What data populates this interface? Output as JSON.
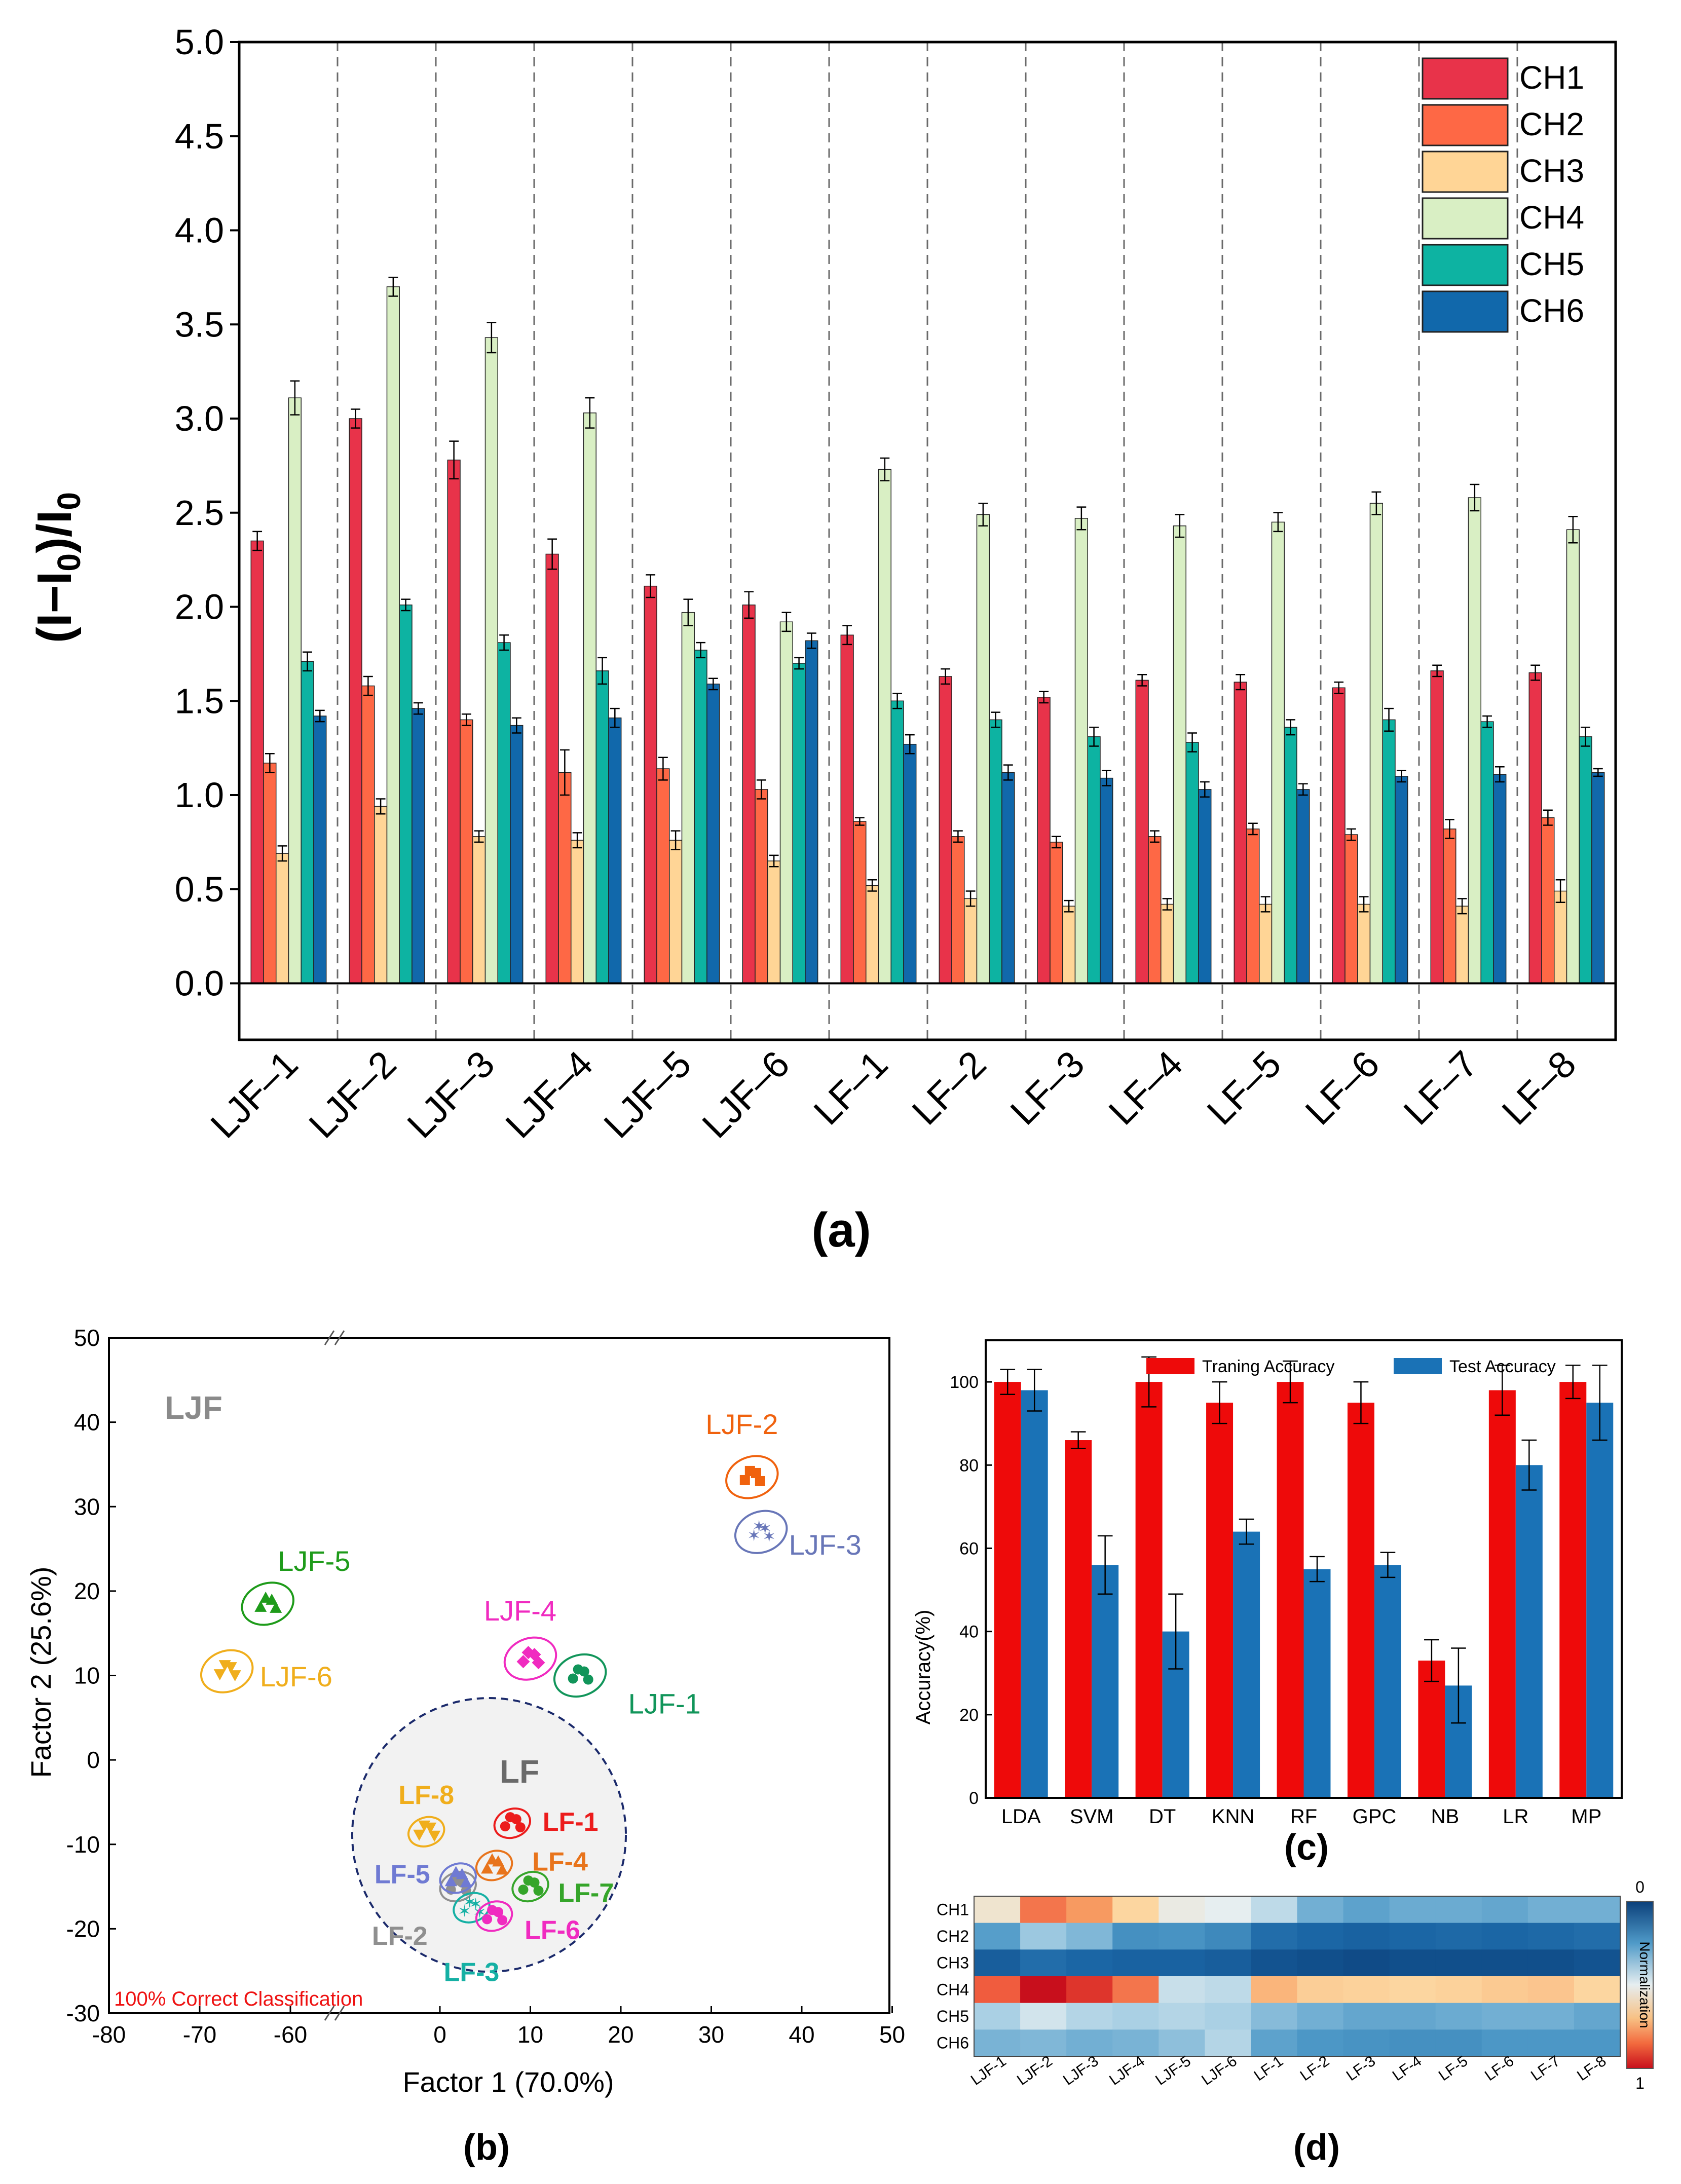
{
  "panel_labels": {
    "a": "(a)",
    "b": "(b)",
    "c": "(c)",
    "d": "(d)"
  },
  "chart_data": [
    {
      "id": "a",
      "type": "bar",
      "title": "",
      "ylabel": "(I−I0)/I0",
      "ylabel_parts": {
        "open": "(I−I",
        "sub1": "0",
        "mid": ")/I",
        "sub2": "0"
      },
      "xlabel": "",
      "ylim": [
        -0.3,
        5.0
      ],
      "yticks": [
        "0.0",
        "0.5",
        "1.0",
        "1.5",
        "2.0",
        "2.5",
        "3.0",
        "3.5",
        "4.0",
        "4.5",
        "5.0"
      ],
      "categories": [
        "LJF–1",
        "LJF–2",
        "LJF–3",
        "LJF–4",
        "LJF–5",
        "LJF–6",
        "LF–1",
        "LF–2",
        "LF–3",
        "LF–4",
        "LF–5",
        "LF–6",
        "LF–7",
        "LF–8"
      ],
      "legend_position": "top-right",
      "series": [
        {
          "name": "CH1",
          "color": "#e8334a",
          "values": [
            2.35,
            3.0,
            2.78,
            2.28,
            2.11,
            2.01,
            1.85,
            1.63,
            1.52,
            1.61,
            1.6,
            1.57,
            1.66,
            1.65
          ],
          "errors": [
            0.05,
            0.05,
            0.1,
            0.08,
            0.06,
            0.07,
            0.05,
            0.04,
            0.03,
            0.03,
            0.04,
            0.03,
            0.03,
            0.04
          ]
        },
        {
          "name": "CH2",
          "color": "#fe6845",
          "values": [
            1.17,
            1.58,
            1.4,
            1.12,
            1.14,
            1.03,
            0.86,
            0.78,
            0.75,
            0.78,
            0.82,
            0.79,
            0.82,
            0.88
          ],
          "errors": [
            0.05,
            0.05,
            0.03,
            0.12,
            0.06,
            0.05,
            0.02,
            0.03,
            0.03,
            0.03,
            0.03,
            0.03,
            0.05,
            0.04
          ]
        },
        {
          "name": "CH3",
          "color": "#ffd596",
          "values": [
            0.69,
            0.94,
            0.78,
            0.76,
            0.76,
            0.65,
            0.52,
            0.45,
            0.41,
            0.42,
            0.42,
            0.42,
            0.41,
            0.49
          ],
          "errors": [
            0.04,
            0.04,
            0.03,
            0.04,
            0.05,
            0.03,
            0.03,
            0.04,
            0.03,
            0.03,
            0.04,
            0.04,
            0.04,
            0.06
          ]
        },
        {
          "name": "CH4",
          "color": "#d9efc4",
          "values": [
            3.11,
            3.7,
            3.43,
            3.03,
            1.97,
            1.92,
            2.73,
            2.49,
            2.47,
            2.43,
            2.45,
            2.55,
            2.58,
            2.41
          ],
          "errors": [
            0.09,
            0.05,
            0.08,
            0.08,
            0.07,
            0.05,
            0.06,
            0.06,
            0.06,
            0.06,
            0.05,
            0.06,
            0.07,
            0.07
          ]
        },
        {
          "name": "CH5",
          "color": "#0db3a2",
          "values": [
            1.71,
            2.01,
            1.81,
            1.66,
            1.77,
            1.7,
            1.5,
            1.4,
            1.31,
            1.28,
            1.36,
            1.4,
            1.39,
            1.31
          ],
          "errors": [
            0.05,
            0.03,
            0.04,
            0.07,
            0.04,
            0.03,
            0.04,
            0.04,
            0.05,
            0.05,
            0.04,
            0.06,
            0.03,
            0.05
          ]
        },
        {
          "name": "CH6",
          "color": "#1168ab",
          "values": [
            1.42,
            1.46,
            1.37,
            1.41,
            1.59,
            1.82,
            1.27,
            1.12,
            1.09,
            1.03,
            1.03,
            1.1,
            1.11,
            1.12
          ],
          "errors": [
            0.03,
            0.03,
            0.04,
            0.05,
            0.03,
            0.04,
            0.05,
            0.04,
            0.04,
            0.04,
            0.03,
            0.03,
            0.04,
            0.02
          ]
        }
      ]
    },
    {
      "id": "b",
      "type": "scatter",
      "xlabel": "Factor 1 (70.0%)",
      "ylabel": "Factor 2 (25.6%)",
      "xticks": [
        "-80",
        "-70",
        "-60",
        "0",
        "10",
        "20",
        "30",
        "40",
        "50"
      ],
      "yticks": [
        "-30",
        "-20",
        "-10",
        "0",
        "10",
        "20",
        "30",
        "40",
        "50"
      ],
      "xlim_left": [
        -80,
        -55
      ],
      "xlim_right": [
        -10,
        50
      ],
      "ylim": [
        -30,
        50
      ],
      "group_labels": {
        "ljf": "LJF",
        "lf": "LF"
      },
      "annotation": "100% Correct Classification",
      "clusters": [
        {
          "label": "LJF-1",
          "x": 15.5,
          "y": 10.0,
          "color": "#11955a",
          "marker": "circle"
        },
        {
          "label": "LJF-2",
          "x": 34.5,
          "y": 33.5,
          "color": "#f0620e",
          "marker": "square"
        },
        {
          "label": "LJF-3",
          "x": 35.5,
          "y": 27.0,
          "color": "#6876b8",
          "marker": "star"
        },
        {
          "label": "LJF-4",
          "x": 10.0,
          "y": 12.0,
          "color": "#f02bc0",
          "marker": "diamond"
        },
        {
          "label": "LJF-5",
          "x": -62.5,
          "y": 18.5,
          "color": "#1e9b1a",
          "marker": "triangle"
        },
        {
          "label": "LJF-6",
          "x": -67.0,
          "y": 10.5,
          "color": "#f0ae1c",
          "marker": "triangle-down"
        },
        {
          "label": "LF-1",
          "x": 8.0,
          "y": -7.5,
          "color": "#ec1c1c",
          "marker": "circle"
        },
        {
          "label": "LF-2",
          "x": 2.0,
          "y": -15.0,
          "color": "#8f8f8f",
          "marker": "circle"
        },
        {
          "label": "LF-3",
          "x": 3.5,
          "y": -17.5,
          "color": "#15b0a4",
          "marker": "star"
        },
        {
          "label": "LF-4",
          "x": 6.0,
          "y": -12.5,
          "color": "#e8741c",
          "marker": "triangle"
        },
        {
          "label": "LF-5",
          "x": 2.0,
          "y": -14.0,
          "color": "#6f7ad3",
          "marker": "triangle"
        },
        {
          "label": "LF-6",
          "x": 6.0,
          "y": -18.5,
          "color": "#f02bc0",
          "marker": "circle"
        },
        {
          "label": "LF-7",
          "x": 10.0,
          "y": -15.0,
          "color": "#35a52a",
          "marker": "circle"
        },
        {
          "label": "LF-8",
          "x": -1.5,
          "y": -8.5,
          "color": "#f0ae1c",
          "marker": "triangle-down"
        }
      ]
    },
    {
      "id": "c",
      "type": "bar",
      "ylabel": "Accuracy(%)",
      "xlabel": "",
      "ylim": [
        0,
        110
      ],
      "yticks": [
        "0",
        "20",
        "40",
        "60",
        "80",
        "100"
      ],
      "categories": [
        "LDA",
        "SVM",
        "DT",
        "KNN",
        "RF",
        "GPC",
        "NB",
        "LR",
        "MP"
      ],
      "legend_position": "top",
      "series": [
        {
          "name": "Traning Accuracy",
          "color": "#ee0a0a",
          "values": [
            100,
            86,
            100,
            95,
            100,
            95,
            33,
            98,
            100
          ],
          "errors": [
            3,
            2,
            6,
            5,
            5,
            5,
            5,
            6,
            4
          ]
        },
        {
          "name": "Test Accuracy",
          "color": "#1a72b6",
          "values": [
            98,
            56,
            40,
            64,
            55,
            56,
            27,
            80,
            95
          ],
          "errors": [
            5,
            7,
            9,
            3,
            3,
            3,
            9,
            6,
            9
          ]
        }
      ]
    },
    {
      "id": "d",
      "type": "heatmap",
      "rows": [
        "CH1",
        "CH2",
        "CH3",
        "CH4",
        "CH5",
        "CH6"
      ],
      "columns": [
        "LJF-1",
        "LJF-2",
        "LJF-3",
        "LJF-4",
        "LJF-5",
        "LJF-6",
        "LF-1",
        "LF-2",
        "LF-3",
        "LF-4",
        "LF-5",
        "LF-6",
        "LF-7",
        "LF-8"
      ],
      "colorbar_label": "Normalization",
      "colorbar_ticks": [
        "0",
        "1"
      ],
      "scale_note": "0 = dark blue, 1 = red",
      "values": [
        [
          0.55,
          0.82,
          0.76,
          0.62,
          0.52,
          0.5,
          0.42,
          0.3,
          0.27,
          0.29,
          0.29,
          0.28,
          0.3,
          0.3
        ],
        [
          0.26,
          0.36,
          0.32,
          0.22,
          0.23,
          0.2,
          0.12,
          0.1,
          0.09,
          0.1,
          0.11,
          0.1,
          0.11,
          0.12
        ],
        [
          0.08,
          0.12,
          0.1,
          0.09,
          0.09,
          0.08,
          0.05,
          0.04,
          0.03,
          0.04,
          0.04,
          0.04,
          0.04,
          0.05
        ],
        [
          0.86,
          1.0,
          0.93,
          0.82,
          0.44,
          0.42,
          0.7,
          0.64,
          0.63,
          0.62,
          0.63,
          0.65,
          0.66,
          0.62
        ],
        [
          0.38,
          0.46,
          0.4,
          0.38,
          0.4,
          0.38,
          0.33,
          0.3,
          0.28,
          0.28,
          0.29,
          0.3,
          0.3,
          0.28
        ],
        [
          0.31,
          0.32,
          0.3,
          0.31,
          0.34,
          0.4,
          0.27,
          0.24,
          0.23,
          0.22,
          0.22,
          0.24,
          0.24,
          0.24
        ]
      ]
    }
  ]
}
